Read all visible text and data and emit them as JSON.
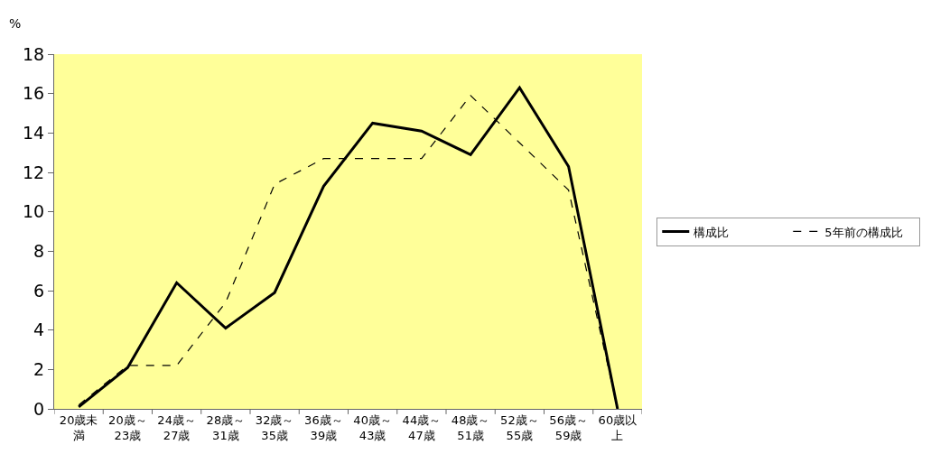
{
  "chart_data": {
    "type": "line",
    "ylabel": "%",
    "categories": [
      "20歳未満",
      "20歳～23歳",
      "24歳～27歳",
      "28歳～31歳",
      "32歳～35歳",
      "36歳～39歳",
      "40歳～43歳",
      "44歳～47歳",
      "48歳～51歳",
      "52歳～55歳",
      "56歳～59歳",
      "60歳以上"
    ],
    "series": [
      {
        "name": "構成比",
        "color": "#000000",
        "line_style": "solid",
        "values": [
          0.1,
          2.1,
          6.4,
          4.1,
          5.9,
          11.3,
          14.5,
          14.1,
          12.9,
          16.3,
          12.3,
          0.0
        ]
      },
      {
        "name": "5年前の構成比",
        "color": "#000000",
        "line_style": "dashed",
        "values": [
          0.2,
          2.2,
          2.2,
          5.4,
          11.4,
          12.7,
          12.7,
          12.7,
          15.9,
          13.5,
          11.1,
          0.0
        ]
      }
    ],
    "ylim": [
      0,
      18
    ],
    "yticks": [
      0,
      2,
      4,
      6,
      8,
      10,
      12,
      14,
      16,
      18
    ],
    "grid": false,
    "legend": "right",
    "marker": "none"
  }
}
